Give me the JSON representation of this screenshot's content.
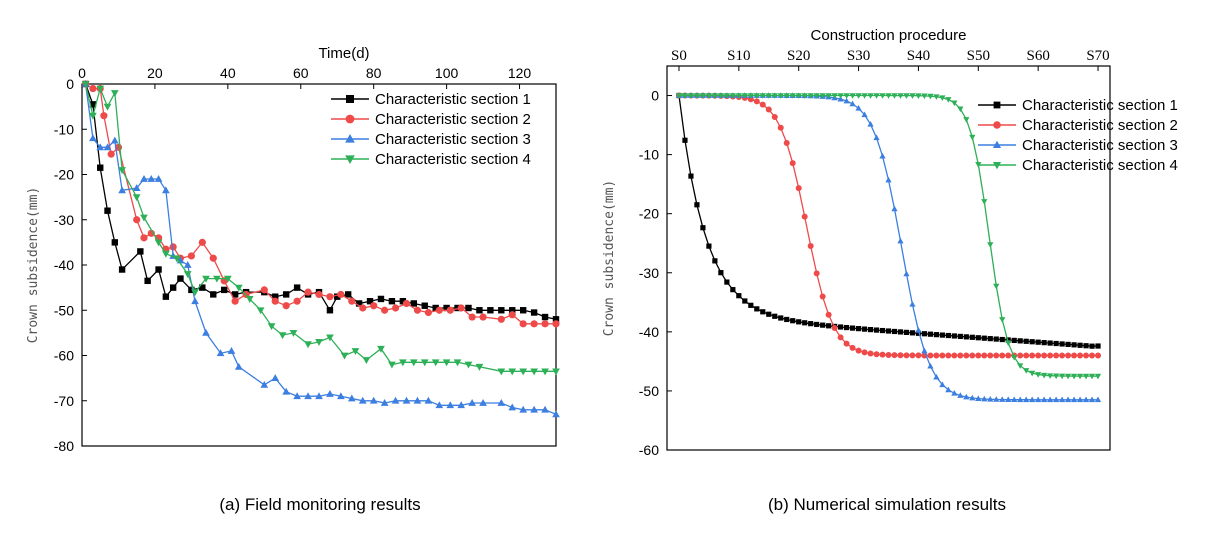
{
  "chart_data": [
    {
      "type": "line",
      "caption": "(a) Field monitoring results",
      "title": "",
      "xlabel": "Time(d)",
      "ylabel": "Crown subsidence(mm)",
      "xlim": [
        0,
        130
      ],
      "ylim": [
        -80,
        0
      ],
      "xticks": [
        0,
        20,
        40,
        60,
        80,
        100,
        120
      ],
      "yticks": [
        0,
        -10,
        -20,
        -30,
        -40,
        -50,
        -60,
        -70,
        -80
      ],
      "x_axis_position": "top",
      "grid": false,
      "legend": "top-right",
      "series": [
        {
          "name": "Characteristic section 1",
          "color": "#000000",
          "marker": "square",
          "x": [
            1,
            3,
            5,
            7,
            9,
            11,
            16,
            18,
            21,
            23,
            25,
            27,
            30,
            33,
            36,
            39,
            42,
            45,
            50,
            53,
            56,
            59,
            62,
            65,
            68,
            70,
            73,
            76,
            79,
            82,
            85,
            88,
            91,
            94,
            97,
            100,
            103,
            106,
            109,
            112,
            115,
            118,
            121,
            124,
            127,
            130
          ],
          "y": [
            0,
            -4.5,
            -18.5,
            -28,
            -35,
            -41,
            -37,
            -43.5,
            -41,
            -47,
            -45,
            -43,
            -45.5,
            -45,
            -46.5,
            -45.5,
            -46.5,
            -46,
            -46,
            -47,
            -46.5,
            -45,
            -46.5,
            -46,
            -50,
            -47,
            -46.5,
            -48.5,
            -48,
            -47.5,
            -48,
            -48,
            -48.5,
            -49,
            -49.5,
            -49.5,
            -49.5,
            -49.5,
            -50,
            -50,
            -50,
            -50,
            -50,
            -50.5,
            -51.5,
            -52
          ]
        },
        {
          "name": "Characteristic section 2",
          "color": "#ef4a4a",
          "marker": "circle",
          "x": [
            1,
            3,
            5,
            6,
            8,
            10,
            15,
            17,
            19,
            21,
            23,
            25,
            27,
            30,
            33,
            36,
            39,
            42,
            45,
            50,
            53,
            56,
            59,
            62,
            65,
            68,
            71,
            74,
            77,
            80,
            83,
            86,
            89,
            92,
            95,
            98,
            101,
            104,
            107,
            110,
            115,
            118,
            121,
            124,
            127,
            130
          ],
          "y": [
            0,
            -1,
            -1,
            -7,
            -15.5,
            -14,
            -30,
            -34,
            -33,
            -34,
            -36.5,
            -36,
            -38.5,
            -38,
            -35,
            -38.5,
            -43.5,
            -48,
            -46.5,
            -45.5,
            -48,
            -49,
            -48,
            -46,
            -46.5,
            -47,
            -46.5,
            -48,
            -49.5,
            -49,
            -50,
            -49.5,
            -48.5,
            -50,
            -50.5,
            -50,
            -50,
            -49.5,
            -51.5,
            -51.5,
            -52,
            -51,
            -53,
            -53,
            -53,
            -53
          ]
        },
        {
          "name": "Characteristic section 3",
          "color": "#3c7fe0",
          "marker": "triangle-up",
          "x": [
            1,
            3,
            5,
            7,
            9,
            11,
            15,
            17,
            19,
            21,
            23,
            25,
            27,
            29,
            31,
            34,
            38,
            41,
            43,
            50,
            53,
            56,
            59,
            62,
            65,
            68,
            71,
            74,
            77,
            80,
            83,
            86,
            89,
            92,
            95,
            98,
            101,
            104,
            107,
            110,
            115,
            118,
            121,
            124,
            127,
            130
          ],
          "y": [
            0,
            -12,
            -14,
            -14,
            -12.5,
            -23.5,
            -23,
            -21,
            -21,
            -21,
            -23.5,
            -38,
            -39,
            -40,
            -48,
            -55,
            -59.5,
            -59,
            -62.5,
            -66.5,
            -65,
            -68,
            -69,
            -69,
            -69,
            -68.5,
            -69,
            -69.5,
            -70,
            -70,
            -70.5,
            -70,
            -70,
            -70,
            -70,
            -71,
            -71,
            -71,
            -70.5,
            -70.5,
            -70.5,
            -71.5,
            -72,
            -72,
            -72,
            -73
          ]
        },
        {
          "name": "Characteristic section 4",
          "color": "#2db057",
          "marker": "triangle-down",
          "x": [
            1,
            3,
            5,
            7,
            9,
            11,
            15,
            17,
            21,
            23,
            26,
            29,
            31,
            34,
            37,
            40,
            43,
            46,
            49,
            52,
            55,
            58,
            62,
            65,
            68,
            72,
            75,
            78,
            82,
            85,
            88,
            91,
            94,
            97,
            100,
            103,
            106,
            109,
            115,
            118,
            121,
            124,
            127,
            130
          ],
          "y": [
            0,
            -7,
            -1,
            -5,
            -2,
            -19,
            -25,
            -29.5,
            -35,
            -37.5,
            -38.5,
            -42,
            -46,
            -43,
            -43,
            -43,
            -45,
            -47.5,
            -50,
            -53.5,
            -55.5,
            -55,
            -57.5,
            -57,
            -56,
            -60,
            -59,
            -61,
            -58.5,
            -62,
            -61.5,
            -61.5,
            -61.5,
            -61.5,
            -61.5,
            -61.5,
            -62,
            -62.5,
            -63.5,
            -63.5,
            -63.5,
            -63.5,
            -63.5,
            -63.5
          ]
        }
      ]
    },
    {
      "type": "line",
      "caption": "(b) Numerical simulation results",
      "title": "",
      "xlabel": "Construction procedure",
      "ylabel": "Crown subsidence(mm)",
      "xlim": [
        -2,
        72
      ],
      "ylim": [
        -60,
        5
      ],
      "xticks": [
        0,
        10,
        20,
        30,
        40,
        50,
        60,
        70
      ],
      "xtick_labels": [
        "S0",
        "S10",
        "S20",
        "S30",
        "S40",
        "S50",
        "S60",
        "S70"
      ],
      "yticks": [
        0,
        -10,
        -20,
        -30,
        -40,
        -50,
        -60
      ],
      "x_axis_position": "top",
      "grid": false,
      "legend": "top-right",
      "series": [
        {
          "name": "Characteristic section 1",
          "color": "#000000",
          "marker": "square",
          "x_start": 0,
          "x_step": 1,
          "count": 71,
          "params": {
            "kind": "exp",
            "final": -42.4,
            "t0": 0,
            "tau": 4.5,
            "slope": 0.075
          }
        },
        {
          "name": "Characteristic section 2",
          "color": "#ef4a4a",
          "marker": "circle",
          "x_start": 0,
          "x_step": 1,
          "count": 71,
          "params": {
            "kind": "logistic",
            "final": -44,
            "center": 21.3,
            "width": 2.2
          }
        },
        {
          "name": "Characteristic section 3",
          "color": "#3c7fe0",
          "marker": "triangle-up",
          "x_start": 0,
          "x_step": 1,
          "count": 71,
          "params": {
            "kind": "logistic",
            "final": -51.5,
            "center": 37.2,
            "width": 2.3
          }
        },
        {
          "name": "Characteristic section 4",
          "color": "#2db057",
          "marker": "triangle-down",
          "x_start": 0,
          "x_step": 1,
          "count": 71,
          "params": {
            "kind": "logistic",
            "final": -47.5,
            "center": 51.8,
            "width": 1.6
          }
        }
      ]
    }
  ]
}
